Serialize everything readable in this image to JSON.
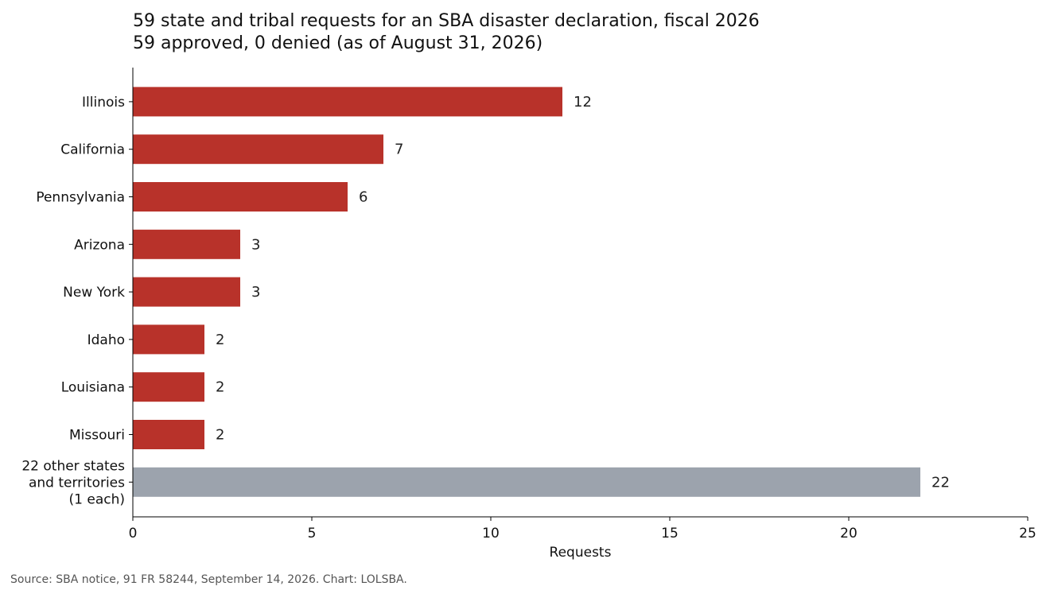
{
  "chart_data": {
    "type": "bar",
    "orientation": "horizontal",
    "title": "59 state and tribal requests for an SBA disaster declaration, fiscal 2026",
    "subtitle": "59 approved, 0 denied (as of August 31, 2026)",
    "xlabel": "Requests",
    "ylabel": "",
    "xlim": [
      0,
      25
    ],
    "xticks": [
      0,
      5,
      10,
      15,
      20,
      25
    ],
    "grid": false,
    "categories": [
      [
        "Illinois"
      ],
      [
        "California"
      ],
      [
        "Pennsylvania"
      ],
      [
        "Arizona"
      ],
      [
        "New York"
      ],
      [
        "Idaho"
      ],
      [
        "Louisiana"
      ],
      [
        "Missouri"
      ],
      [
        "22 other states",
        "and territories",
        "(1 each)"
      ]
    ],
    "values": [
      12,
      7,
      6,
      3,
      3,
      2,
      2,
      2,
      22
    ],
    "colors": [
      "#b8322a",
      "#b8322a",
      "#b8322a",
      "#b8322a",
      "#b8322a",
      "#b8322a",
      "#b8322a",
      "#b8322a",
      "#9ca3ad"
    ],
    "data_labels": [
      "12",
      "7",
      "6",
      "3",
      "3",
      "2",
      "2",
      "2",
      "22"
    ],
    "source": "Source: SBA notice, 91 FR 58244, September 14, 2026. Chart: LOLSBA."
  }
}
